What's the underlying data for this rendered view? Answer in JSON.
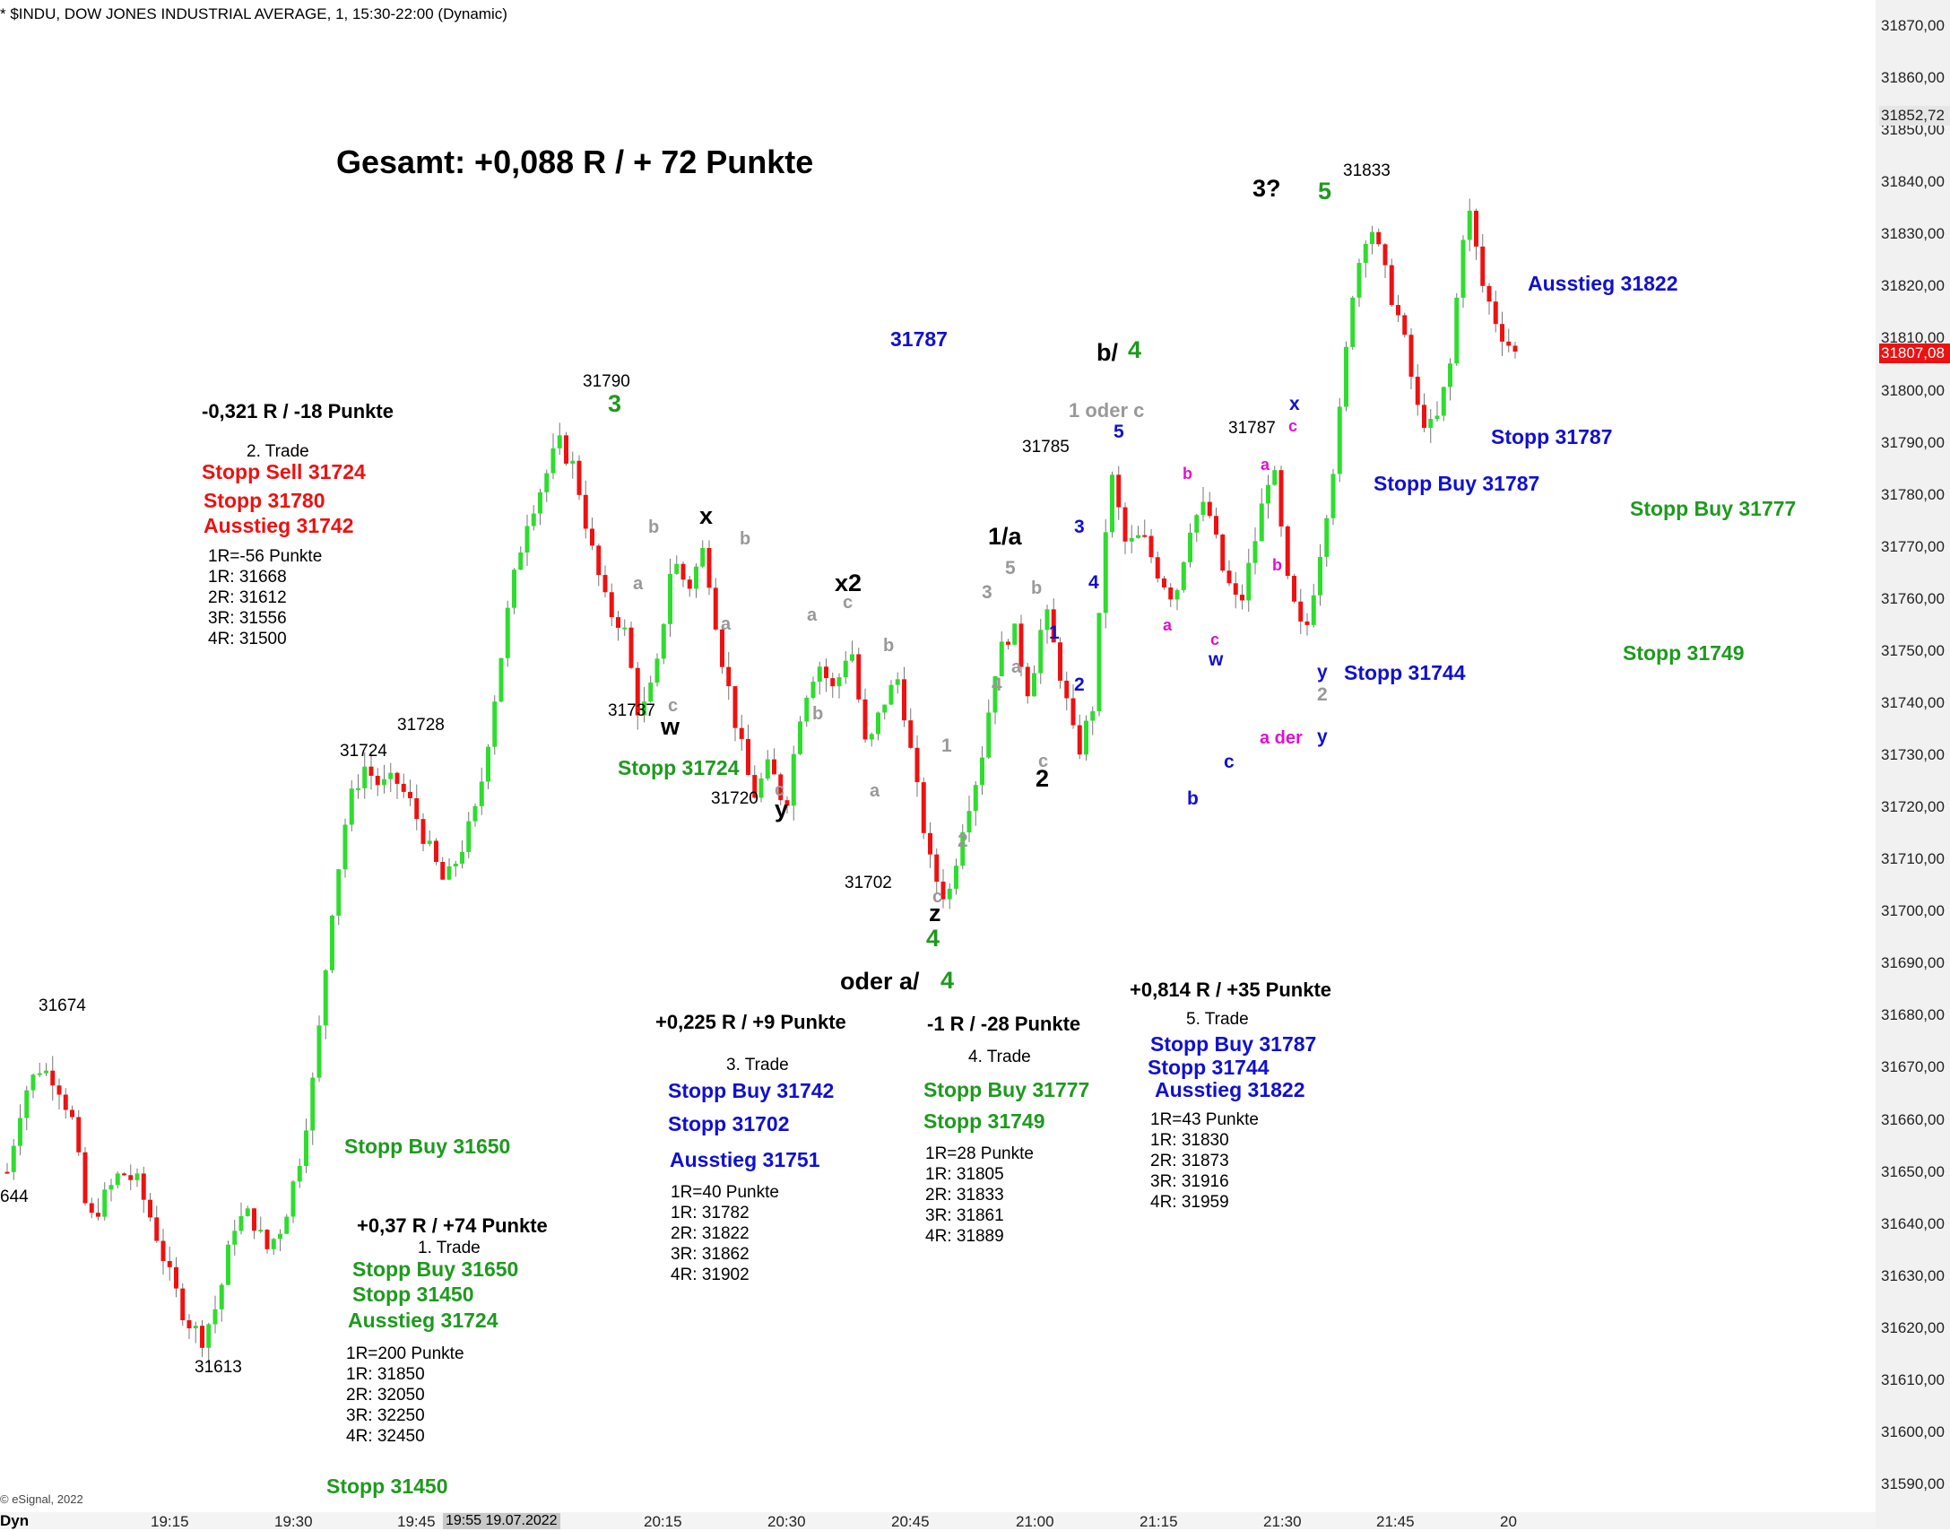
{
  "header": "* $INDU, DOW JONES INDUSTRIAL AVERAGE, 1, 15:30-22:00 (Dynamic)",
  "copyright": "© eSignal, 2022",
  "dyn_label": "Dyn",
  "time_cursor": "19:55 19.07.2022",
  "colors": {
    "up": "#2edd2e",
    "down": "#ee1111",
    "green": "#1e9a1e",
    "red": "#ee1111",
    "blue": "#1010d0",
    "gray": "#999999",
    "magenta": "#e010d0",
    "black": "#000000"
  },
  "chart_data": {
    "type": "candlestick",
    "title": "$INDU, DOW JONES INDUSTRIAL AVERAGE, 1, 15:30-22:00 (Dynamic)",
    "interval": "1 min",
    "ylim": [
      31584,
      31874
    ],
    "y_ticks": [
      31590,
      31600,
      31610,
      31620,
      31630,
      31640,
      31650,
      31660,
      31670,
      31680,
      31690,
      31700,
      31710,
      31720,
      31730,
      31740,
      31750,
      31760,
      31770,
      31780,
      31790,
      31800,
      31810,
      31820,
      31830,
      31840,
      31850,
      31860,
      31870
    ],
    "y_tick_labels": [
      "31590,00",
      "31600,00",
      "31610,00",
      "31620,00",
      "31630,00",
      "31640,00",
      "31650,00",
      "31660,00",
      "31670,00",
      "31680,00",
      "31690,00",
      "31700,00",
      "31710,00",
      "31720,00",
      "31730,00",
      "31740,00",
      "31750,00",
      "31760,00",
      "31770,00",
      "31780,00",
      "31790,00",
      "31800,00",
      "31810,00",
      "31820,00",
      "31830,00",
      "31840,00",
      "31850,00",
      "31860,00",
      "31870,00"
    ],
    "x_ticks": [
      "19:15",
      "19:30",
      "19:45",
      "20:15",
      "20:30",
      "20:45",
      "21:00",
      "21:15",
      "21:30",
      "21:45",
      "20"
    ],
    "price_markers": [
      {
        "label": "31852,72",
        "value": 31852.72,
        "color": "#e6e6e6"
      },
      {
        "label": "31807,08",
        "value": 31807.08,
        "color": "#ee1111"
      }
    ],
    "path": [
      31650,
      31665,
      31670,
      31668,
      31660,
      31640,
      31645,
      31650,
      31648,
      31640,
      31630,
      31622,
      31618,
      31625,
      31640,
      31642,
      31635,
      31640,
      31652,
      31670,
      31700,
      31720,
      31728,
      31724,
      31725,
      31720,
      31712,
      31705,
      31712,
      31720,
      31740,
      31760,
      31775,
      31782,
      31790,
      31785,
      31770,
      31758,
      31755,
      31737,
      31745,
      31768,
      31762,
      31770,
      31750,
      31735,
      31722,
      31728,
      31720,
      31740,
      31748,
      31742,
      31752,
      31730,
      31740,
      31745,
      31725,
      31708,
      31702,
      31718,
      31728,
      31748,
      31755,
      31742,
      31758,
      31745,
      31730,
      31740,
      31785,
      31770,
      31772,
      31765,
      31760,
      31775,
      31778,
      31765,
      31758,
      31772,
      31787,
      31762,
      31752,
      31770,
      31790,
      31820,
      31833,
      31822,
      31812,
      31796,
      31792,
      31805,
      31837,
      31820,
      31812,
      31807
    ],
    "candle_count": 233
  },
  "labels": [
    {
      "text": "Gesamt: +0,088 R / + 72 Punkte",
      "x": 375,
      "y": 180,
      "size": 36,
      "bold": true,
      "color": "black"
    },
    {
      "text": "-0,321 R / -18 Punkte",
      "x": 225,
      "y": 458,
      "size": 22,
      "bold": true,
      "color": "black"
    },
    {
      "text": "2. Trade",
      "x": 275,
      "y": 503,
      "size": 19,
      "bold": false,
      "color": "black"
    },
    {
      "text": "Stopp Sell 31724",
      "x": 225,
      "y": 526,
      "size": 23,
      "bold": true,
      "color": "red"
    },
    {
      "text": "Stopp 31780",
      "x": 227,
      "y": 558,
      "size": 23,
      "bold": true,
      "color": "red"
    },
    {
      "text": "Ausstieg 31742",
      "x": 227,
      "y": 586,
      "size": 23,
      "bold": true,
      "color": "red"
    },
    {
      "text": "1R=-56 Punkte",
      "x": 232,
      "y": 620,
      "size": 19,
      "bold": false,
      "color": "black"
    },
    {
      "text": "1R: 31668",
      "x": 232,
      "y": 643,
      "size": 19,
      "bold": false,
      "color": "black"
    },
    {
      "text": "2R: 31612",
      "x": 232,
      "y": 666,
      "size": 19,
      "bold": false,
      "color": "black"
    },
    {
      "text": "3R: 31556",
      "x": 232,
      "y": 689,
      "size": 19,
      "bold": false,
      "color": "black"
    },
    {
      "text": "4R: 31500",
      "x": 232,
      "y": 712,
      "size": 19,
      "bold": false,
      "color": "black"
    },
    {
      "text": "31790",
      "x": 650,
      "y": 425,
      "size": 19,
      "bold": false,
      "color": "black"
    },
    {
      "text": "3",
      "x": 678,
      "y": 450,
      "size": 27,
      "bold": true,
      "color": "green"
    },
    {
      "text": "31787",
      "x": 993,
      "y": 378,
      "size": 23,
      "bold": true,
      "color": "blue"
    },
    {
      "text": "31674",
      "x": 43,
      "y": 1121,
      "size": 19,
      "bold": false,
      "color": "black"
    },
    {
      "text": "644",
      "x": 0,
      "y": 1334,
      "size": 19,
      "bold": false,
      "color": "black"
    },
    {
      "text": "31613",
      "x": 217,
      "y": 1524,
      "size": 19,
      "bold": false,
      "color": "black"
    },
    {
      "text": "31724",
      "x": 379,
      "y": 837,
      "size": 19,
      "bold": false,
      "color": "black"
    },
    {
      "text": "31728",
      "x": 443,
      "y": 808,
      "size": 19,
      "bold": false,
      "color": "black"
    },
    {
      "text": "Stopp Buy 31650",
      "x": 384,
      "y": 1278,
      "size": 23,
      "bold": true,
      "color": "green"
    },
    {
      "text": "+0,37 R / +74 Punkte",
      "x": 398,
      "y": 1366,
      "size": 22,
      "bold": true,
      "color": "black"
    },
    {
      "text": "1. Trade",
      "x": 466,
      "y": 1391,
      "size": 19,
      "bold": false,
      "color": "black"
    },
    {
      "text": "Stopp Buy 31650",
      "x": 393,
      "y": 1415,
      "size": 23,
      "bold": true,
      "color": "green"
    },
    {
      "text": "Stopp 31450",
      "x": 393,
      "y": 1443,
      "size": 23,
      "bold": true,
      "color": "green"
    },
    {
      "text": "Ausstieg 31724",
      "x": 388,
      "y": 1472,
      "size": 23,
      "bold": true,
      "color": "green"
    },
    {
      "text": "1R=200 Punkte",
      "x": 386,
      "y": 1509,
      "size": 19,
      "bold": false,
      "color": "black"
    },
    {
      "text": "1R: 31850",
      "x": 386,
      "y": 1532,
      "size": 19,
      "bold": false,
      "color": "black"
    },
    {
      "text": "2R: 32050",
      "x": 386,
      "y": 1555,
      "size": 19,
      "bold": false,
      "color": "black"
    },
    {
      "text": "3R: 32250",
      "x": 386,
      "y": 1578,
      "size": 19,
      "bold": false,
      "color": "black"
    },
    {
      "text": "4R: 32450",
      "x": 386,
      "y": 1601,
      "size": 19,
      "bold": false,
      "color": "black"
    },
    {
      "text": "Stopp 31450",
      "x": 364,
      "y": 1657,
      "size": 23,
      "bold": true,
      "color": "green"
    },
    {
      "text": "31737",
      "x": 678,
      "y": 792,
      "size": 19,
      "bold": false,
      "color": "black"
    },
    {
      "text": "w",
      "x": 737,
      "y": 810,
      "size": 27,
      "bold": true,
      "color": "black"
    },
    {
      "text": "Stopp 31724",
      "x": 689,
      "y": 856,
      "size": 23,
      "bold": true,
      "color": "green"
    },
    {
      "text": "31720",
      "x": 793,
      "y": 890,
      "size": 19,
      "bold": false,
      "color": "black"
    },
    {
      "text": "y",
      "x": 864,
      "y": 902,
      "size": 27,
      "bold": true,
      "color": "black"
    },
    {
      "text": "x",
      "x": 780,
      "y": 575,
      "size": 27,
      "bold": true,
      "color": "black"
    },
    {
      "text": "x2",
      "x": 931,
      "y": 650,
      "size": 27,
      "bold": true,
      "color": "black"
    },
    {
      "text": "31702",
      "x": 942,
      "y": 984,
      "size": 19,
      "bold": false,
      "color": "black"
    },
    {
      "text": "z",
      "x": 1036,
      "y": 1018,
      "size": 27,
      "bold": true,
      "color": "black"
    },
    {
      "text": "4",
      "x": 1033,
      "y": 1046,
      "size": 27,
      "bold": true,
      "color": "green"
    },
    {
      "text": "oder a/",
      "x": 937,
      "y": 1094,
      "size": 27,
      "bold": true,
      "color": "black"
    },
    {
      "text": "4",
      "x": 1049,
      "y": 1093,
      "size": 27,
      "bold": true,
      "color": "green"
    },
    {
      "text": "+0,225 R / +9 Punkte",
      "x": 731,
      "y": 1139,
      "size": 22,
      "bold": true,
      "color": "black"
    },
    {
      "text": "3. Trade",
      "x": 810,
      "y": 1187,
      "size": 19,
      "bold": false,
      "color": "black"
    },
    {
      "text": "Stopp Buy 31742",
      "x": 745,
      "y": 1216,
      "size": 23,
      "bold": true,
      "color": "blue"
    },
    {
      "text": "Stopp 31702",
      "x": 745,
      "y": 1253,
      "size": 23,
      "bold": true,
      "color": "blue"
    },
    {
      "text": "Ausstieg 31751",
      "x": 747,
      "y": 1293,
      "size": 23,
      "bold": true,
      "color": "blue"
    },
    {
      "text": "1R=40 Punkte",
      "x": 748,
      "y": 1329,
      "size": 19,
      "bold": false,
      "color": "black"
    },
    {
      "text": "1R: 31782",
      "x": 748,
      "y": 1352,
      "size": 19,
      "bold": false,
      "color": "black"
    },
    {
      "text": "2R: 31822",
      "x": 748,
      "y": 1375,
      "size": 19,
      "bold": false,
      "color": "black"
    },
    {
      "text": "3R: 31862",
      "x": 748,
      "y": 1398,
      "size": 19,
      "bold": false,
      "color": "black"
    },
    {
      "text": "4R: 31902",
      "x": 748,
      "y": 1421,
      "size": 19,
      "bold": false,
      "color": "black"
    },
    {
      "text": "-1 R / -28 Punkte",
      "x": 1034,
      "y": 1141,
      "size": 22,
      "bold": true,
      "color": "black"
    },
    {
      "text": "4. Trade",
      "x": 1080,
      "y": 1178,
      "size": 19,
      "bold": false,
      "color": "black"
    },
    {
      "text": "Stopp Buy 31777",
      "x": 1030,
      "y": 1215,
      "size": 23,
      "bold": true,
      "color": "green"
    },
    {
      "text": "Stopp 31749",
      "x": 1030,
      "y": 1250,
      "size": 23,
      "bold": true,
      "color": "green"
    },
    {
      "text": "1R=28 Punkte",
      "x": 1032,
      "y": 1286,
      "size": 19,
      "bold": false,
      "color": "black"
    },
    {
      "text": "1R: 31805",
      "x": 1032,
      "y": 1309,
      "size": 19,
      "bold": false,
      "color": "black"
    },
    {
      "text": "2R: 31833",
      "x": 1032,
      "y": 1332,
      "size": 19,
      "bold": false,
      "color": "black"
    },
    {
      "text": "3R: 31861",
      "x": 1032,
      "y": 1355,
      "size": 19,
      "bold": false,
      "color": "black"
    },
    {
      "text": "4R: 31889",
      "x": 1032,
      "y": 1378,
      "size": 19,
      "bold": false,
      "color": "black"
    },
    {
      "text": "1/a",
      "x": 1102,
      "y": 598,
      "size": 27,
      "bold": true,
      "color": "black"
    },
    {
      "text": "2",
      "x": 1155,
      "y": 868,
      "size": 27,
      "bold": true,
      "color": "black"
    },
    {
      "text": "31785",
      "x": 1140,
      "y": 498,
      "size": 19,
      "bold": false,
      "color": "black"
    },
    {
      "text": "b/",
      "x": 1223,
      "y": 393,
      "size": 27,
      "bold": true,
      "color": "black"
    },
    {
      "text": "4",
      "x": 1258,
      "y": 390,
      "size": 27,
      "bold": true,
      "color": "green"
    },
    {
      "text": "1 oder c",
      "x": 1192,
      "y": 457,
      "size": 22,
      "bold": true,
      "color": "gray"
    },
    {
      "text": "+0,814 R / +35 Punkte",
      "x": 1260,
      "y": 1103,
      "size": 22,
      "bold": true,
      "color": "black"
    },
    {
      "text": "5. Trade",
      "x": 1323,
      "y": 1136,
      "size": 19,
      "bold": false,
      "color": "black"
    },
    {
      "text": "Stopp Buy 31787",
      "x": 1283,
      "y": 1164,
      "size": 23,
      "bold": true,
      "color": "blue"
    },
    {
      "text": "Stopp 31744",
      "x": 1280,
      "y": 1190,
      "size": 23,
      "bold": true,
      "color": "blue"
    },
    {
      "text": "Ausstieg 31822",
      "x": 1288,
      "y": 1215,
      "size": 23,
      "bold": true,
      "color": "blue"
    },
    {
      "text": "1R=43 Punkte",
      "x": 1283,
      "y": 1248,
      "size": 19,
      "bold": false,
      "color": "black"
    },
    {
      "text": "1R: 31830",
      "x": 1283,
      "y": 1271,
      "size": 19,
      "bold": false,
      "color": "black"
    },
    {
      "text": "2R: 31873",
      "x": 1283,
      "y": 1294,
      "size": 19,
      "bold": false,
      "color": "black"
    },
    {
      "text": "3R: 31916",
      "x": 1283,
      "y": 1317,
      "size": 19,
      "bold": false,
      "color": "black"
    },
    {
      "text": "4R: 31959",
      "x": 1283,
      "y": 1340,
      "size": 19,
      "bold": false,
      "color": "black"
    },
    {
      "text": "3?",
      "x": 1397,
      "y": 210,
      "size": 27,
      "bold": true,
      "color": "black"
    },
    {
      "text": "5",
      "x": 1470,
      "y": 213,
      "size": 27,
      "bold": true,
      "color": "green"
    },
    {
      "text": "31833",
      "x": 1498,
      "y": 190,
      "size": 19,
      "bold": false,
      "color": "black"
    },
    {
      "text": "31787",
      "x": 1370,
      "y": 477,
      "size": 19,
      "bold": false,
      "color": "black"
    },
    {
      "text": "Ausstieg 31822",
      "x": 1704,
      "y": 316,
      "size": 23,
      "bold": true,
      "color": "blue"
    },
    {
      "text": "Stopp 31787",
      "x": 1663,
      "y": 487,
      "size": 23,
      "bold": true,
      "color": "blue"
    },
    {
      "text": "Stopp Buy 31787",
      "x": 1532,
      "y": 539,
      "size": 23,
      "bold": true,
      "color": "blue"
    },
    {
      "text": "Stopp Buy 31777",
      "x": 1818,
      "y": 567,
      "size": 23,
      "bold": true,
      "color": "green"
    },
    {
      "text": "Stopp 31749",
      "x": 1810,
      "y": 728,
      "size": 23,
      "bold": true,
      "color": "green"
    },
    {
      "text": "Stopp 31744",
      "x": 1499,
      "y": 750,
      "size": 23,
      "bold": true,
      "color": "blue"
    },
    {
      "text": "a der",
      "x": 1405,
      "y": 823,
      "size": 20,
      "bold": true,
      "color": "magenta"
    },
    {
      "text": "y",
      "x": 1469,
      "y": 822,
      "size": 21,
      "bold": true,
      "color": "blue"
    },
    {
      "text": "c",
      "x": 1365,
      "y": 850,
      "size": 21,
      "bold": true,
      "color": "blue"
    },
    {
      "text": "b",
      "x": 1324,
      "y": 891,
      "size": 21,
      "bold": true,
      "color": "blue"
    },
    {
      "text": "5",
      "x": 1242,
      "y": 482,
      "size": 21,
      "bold": true,
      "color": "blue"
    },
    {
      "text": "3",
      "x": 1198,
      "y": 588,
      "size": 21,
      "bold": true,
      "color": "blue"
    },
    {
      "text": "4",
      "x": 1214,
      "y": 650,
      "size": 21,
      "bold": true,
      "color": "blue"
    },
    {
      "text": "1",
      "x": 1170,
      "y": 706,
      "size": 21,
      "bold": true,
      "color": "blue"
    },
    {
      "text": "2",
      "x": 1198,
      "y": 764,
      "size": 21,
      "bold": true,
      "color": "blue"
    },
    {
      "text": "x",
      "x": 1438,
      "y": 451,
      "size": 21,
      "bold": true,
      "color": "blue"
    },
    {
      "text": "w",
      "x": 1348,
      "y": 736,
      "size": 21,
      "bold": true,
      "color": "blue"
    },
    {
      "text": "y",
      "x": 1469,
      "y": 750,
      "size": 21,
      "bold": true,
      "color": "blue"
    },
    {
      "text": "2",
      "x": 1469,
      "y": 775,
      "size": 21,
      "bold": true,
      "color": "gray"
    },
    {
      "text": "c",
      "x": 1437,
      "y": 475,
      "size": 18,
      "bold": true,
      "color": "magenta"
    },
    {
      "text": "a",
      "x": 1406,
      "y": 518,
      "size": 18,
      "bold": true,
      "color": "magenta"
    },
    {
      "text": "b",
      "x": 1319,
      "y": 528,
      "size": 18,
      "bold": true,
      "color": "magenta"
    },
    {
      "text": "b",
      "x": 1419,
      "y": 630,
      "size": 18,
      "bold": true,
      "color": "magenta"
    },
    {
      "text": "a",
      "x": 1297,
      "y": 697,
      "size": 18,
      "bold": true,
      "color": "magenta"
    },
    {
      "text": "c",
      "x": 1350,
      "y": 713,
      "size": 18,
      "bold": true,
      "color": "magenta"
    },
    {
      "text": "b",
      "x": 723,
      "y": 588,
      "size": 20,
      "bold": true,
      "color": "gray"
    },
    {
      "text": "a",
      "x": 706,
      "y": 651,
      "size": 20,
      "bold": true,
      "color": "gray"
    },
    {
      "text": "c",
      "x": 745,
      "y": 787,
      "size": 20,
      "bold": true,
      "color": "gray"
    },
    {
      "text": "b",
      "x": 825,
      "y": 601,
      "size": 20,
      "bold": true,
      "color": "gray"
    },
    {
      "text": "a",
      "x": 804,
      "y": 696,
      "size": 20,
      "bold": true,
      "color": "gray"
    },
    {
      "text": "c",
      "x": 864,
      "y": 881,
      "size": 20,
      "bold": true,
      "color": "gray"
    },
    {
      "text": "a",
      "x": 900,
      "y": 686,
      "size": 20,
      "bold": true,
      "color": "gray"
    },
    {
      "text": "c",
      "x": 940,
      "y": 672,
      "size": 20,
      "bold": true,
      "color": "gray"
    },
    {
      "text": "b",
      "x": 906,
      "y": 796,
      "size": 20,
      "bold": true,
      "color": "gray"
    },
    {
      "text": "b",
      "x": 985,
      "y": 720,
      "size": 20,
      "bold": true,
      "color": "gray"
    },
    {
      "text": "a",
      "x": 970,
      "y": 882,
      "size": 20,
      "bold": true,
      "color": "gray"
    },
    {
      "text": "c",
      "x": 1040,
      "y": 1000,
      "size": 20,
      "bold": true,
      "color": "gray"
    },
    {
      "text": "1",
      "x": 1050,
      "y": 832,
      "size": 21,
      "bold": true,
      "color": "gray"
    },
    {
      "text": "2",
      "x": 1068,
      "y": 938,
      "size": 21,
      "bold": true,
      "color": "gray"
    },
    {
      "text": "3",
      "x": 1095,
      "y": 661,
      "size": 21,
      "bold": true,
      "color": "gray"
    },
    {
      "text": "4",
      "x": 1106,
      "y": 764,
      "size": 21,
      "bold": true,
      "color": "gray"
    },
    {
      "text": "5",
      "x": 1121,
      "y": 634,
      "size": 21,
      "bold": true,
      "color": "gray"
    },
    {
      "text": "b",
      "x": 1150,
      "y": 656,
      "size": 20,
      "bold": true,
      "color": "gray"
    },
    {
      "text": "a",
      "x": 1128,
      "y": 744,
      "size": 20,
      "bold": true,
      "color": "gray"
    },
    {
      "text": "c",
      "x": 1158,
      "y": 849,
      "size": 20,
      "bold": true,
      "color": "gray"
    }
  ]
}
